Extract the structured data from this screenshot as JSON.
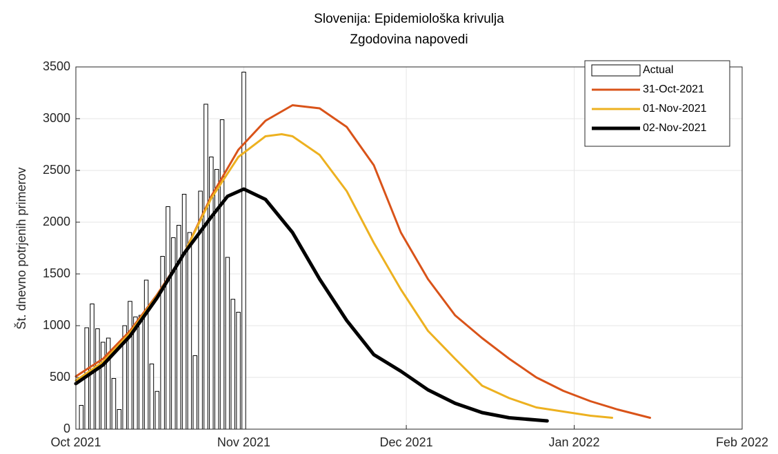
{
  "chart_data": {
    "type": "bar",
    "title": "Slovenija: Epidemiološka krivulja",
    "subtitle": "Zgodovina napovedi",
    "y_label": "Št. dnevno potrjenih primerov",
    "xlim": [
      0,
      123
    ],
    "ylim": [
      0,
      3500
    ],
    "xticks": [
      {
        "value": 0,
        "label": "Oct 2021"
      },
      {
        "value": 31,
        "label": "Nov 2021"
      },
      {
        "value": 61,
        "label": "Dec 2021"
      },
      {
        "value": 92,
        "label": "Jan 2022"
      },
      {
        "value": 123,
        "label": "Feb 2022"
      }
    ],
    "yticks": [
      0,
      500,
      1000,
      1500,
      2000,
      2500,
      3000,
      3500
    ],
    "grid": true,
    "legend": "top-right",
    "series": [
      {
        "name": "Actual",
        "type": "bar",
        "color": "#ffffff",
        "x": [
          1,
          2,
          3,
          4,
          5,
          6,
          7,
          8,
          9,
          10,
          11,
          12,
          13,
          14,
          15,
          16,
          17,
          18,
          19,
          20,
          21,
          22,
          23,
          24,
          25,
          26,
          27,
          28,
          29,
          30,
          31
        ],
        "values": [
          230,
          980,
          1210,
          970,
          840,
          880,
          490,
          190,
          1000,
          1235,
          1085,
          1100,
          1440,
          630,
          365,
          1670,
          2150,
          1850,
          1970,
          2270,
          1900,
          710,
          2300,
          3140,
          2630,
          2510,
          2990,
          1660,
          1255,
          1130,
          3450
        ]
      },
      {
        "name": "31-Oct-2021",
        "type": "line",
        "color": "#D95319",
        "width": 3,
        "x": [
          0,
          5,
          10,
          15,
          20,
          25,
          30,
          35,
          40,
          45,
          50,
          55,
          60,
          65,
          70,
          75,
          80,
          85,
          90,
          95,
          100,
          106
        ],
        "values": [
          510,
          680,
          950,
          1300,
          1700,
          2250,
          2700,
          2980,
          3130,
          3100,
          2920,
          2550,
          1900,
          1450,
          1100,
          880,
          680,
          500,
          370,
          270,
          190,
          110
        ]
      },
      {
        "name": "01-Nov-2021",
        "type": "line",
        "color": "#EDB120",
        "width": 3,
        "x": [
          0,
          5,
          10,
          15,
          20,
          25,
          30,
          35,
          38,
          40,
          45,
          50,
          55,
          60,
          65,
          70,
          75,
          80,
          85,
          90,
          95,
          99
        ],
        "values": [
          470,
          650,
          930,
          1290,
          1700,
          2230,
          2630,
          2830,
          2850,
          2830,
          2650,
          2300,
          1800,
          1350,
          950,
          680,
          420,
          300,
          210,
          170,
          130,
          110
        ]
      },
      {
        "name": "02-Nov-2021",
        "type": "line",
        "color": "#000000",
        "width": 5,
        "x": [
          0,
          5,
          10,
          15,
          20,
          25,
          28,
          31,
          35,
          40,
          45,
          50,
          55,
          60,
          65,
          70,
          75,
          80,
          87
        ],
        "values": [
          440,
          620,
          900,
          1270,
          1700,
          2050,
          2250,
          2320,
          2220,
          1900,
          1450,
          1050,
          720,
          560,
          380,
          250,
          160,
          110,
          80
        ]
      }
    ]
  }
}
